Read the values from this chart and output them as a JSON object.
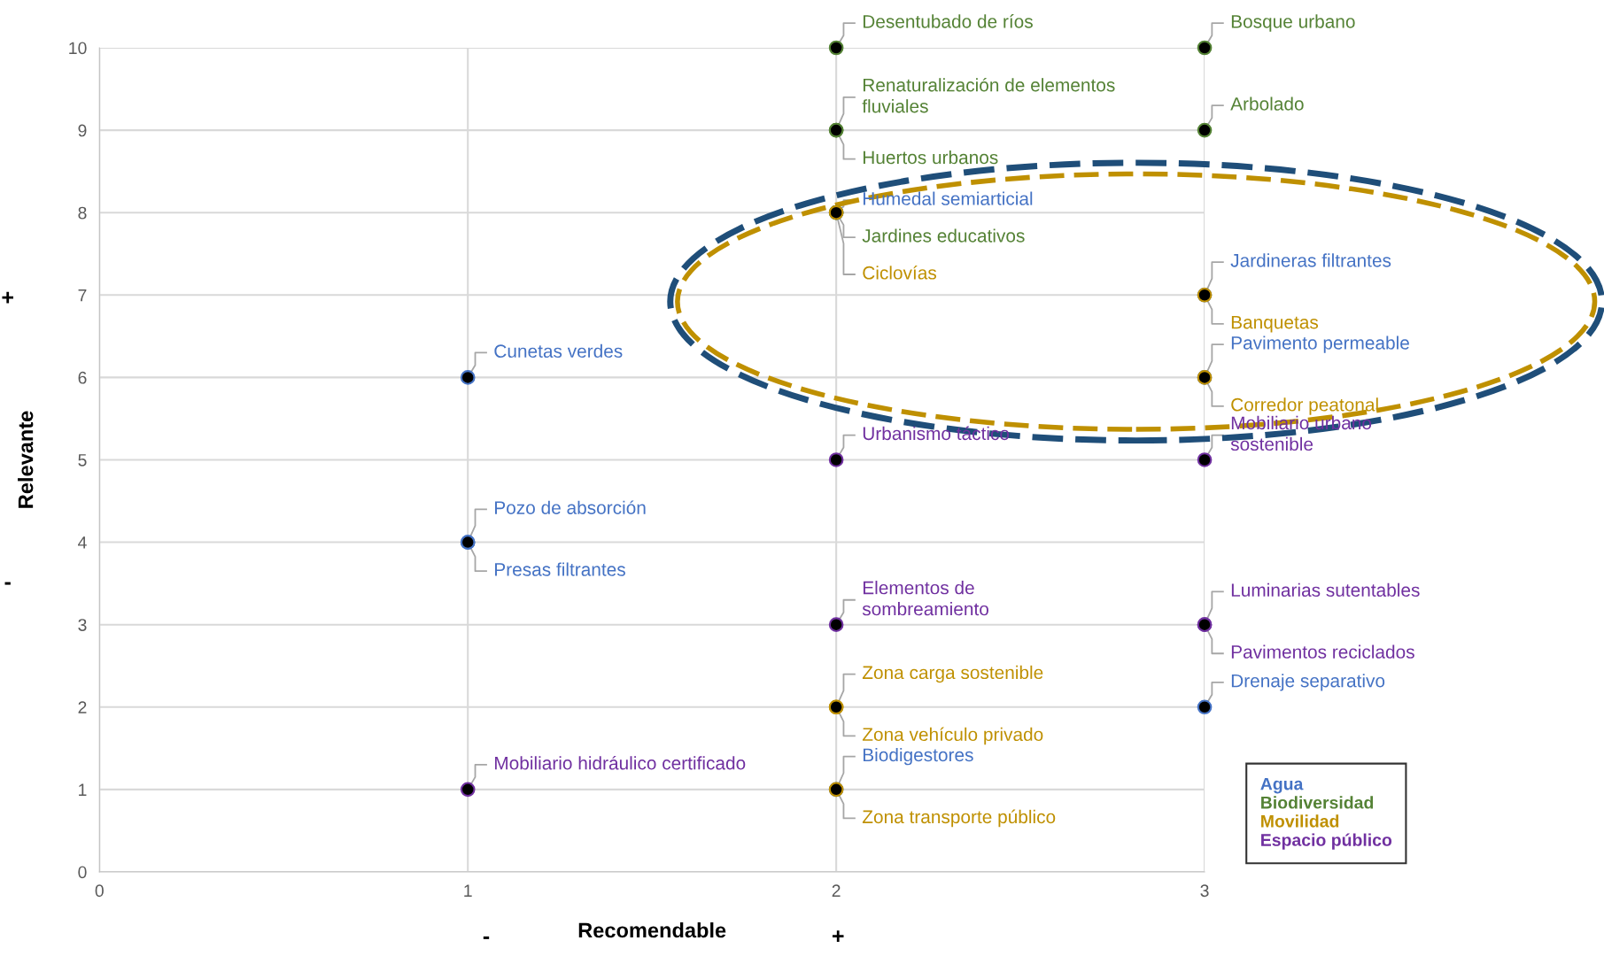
{
  "chart_data": {
    "type": "scatter",
    "xlabel": "Recomendable",
    "ylabel": "Relevante",
    "xlim": [
      0,
      3
    ],
    "ylim": [
      0,
      10
    ],
    "xticks": [
      0,
      1,
      2,
      3
    ],
    "yticks": [
      0,
      1,
      2,
      3,
      4,
      5,
      6,
      7,
      8,
      9,
      10
    ],
    "grid": true,
    "legend": "bottom right",
    "marker": "circle",
    "annotations": [
      "-",
      "+",
      "-",
      "+"
    ],
    "series": [
      {
        "name": "Agua",
        "color": "#4472c4",
        "colors": [
          "#000000",
          "#000000",
          "#000000",
          "#000000",
          "#000000",
          "#000000",
          "#000000",
          "#000000"
        ],
        "x": [
          2,
          3,
          1,
          3,
          1,
          1,
          3,
          2
        ],
        "values": [
          8,
          7,
          6,
          6,
          4,
          4,
          2,
          1
        ],
        "value_labels": [
          "Humedal semiarticial",
          "Jardineras filtrantes",
          "Cunetas verdes",
          "Pavimento permeable",
          "Pozo de absorción",
          "Presas filtrantes",
          "Drenaje separativo",
          "Biodigestores"
        ]
      },
      {
        "name": "Biodiversidad",
        "color": "#548235",
        "colors": [
          "#000000",
          "#000000",
          "#000000",
          "#000000",
          "#000000",
          "#000000"
        ],
        "x": [
          2,
          3,
          2,
          2,
          3,
          2
        ],
        "values": [
          10,
          10,
          9,
          9,
          9,
          8
        ],
        "value_labels": [
          "Desentubado de ríos",
          "Bosque urbano",
          "Renaturalización de elementos\nfluviales",
          "Huertos urbanos",
          "Arbolado",
          "Jardines educativos"
        ]
      },
      {
        "name": "Movilidad",
        "color": "#bf9000",
        "colors": [
          "#000000",
          "#000000",
          "#000000",
          "#000000",
          "#000000",
          "#000000"
        ],
        "x": [
          2,
          3,
          3,
          2,
          2,
          2
        ],
        "values": [
          8,
          7,
          6,
          2,
          2,
          1
        ],
        "value_labels": [
          "Ciclovías",
          "Banquetas",
          "Corredor peatonal",
          "Zona carga sostenible",
          "Zona vehículo privado",
          "Zona transporte público"
        ]
      },
      {
        "name": "Espacio público",
        "color": "#7030a0",
        "colors": [
          "#000000",
          "#000000",
          "#000000",
          "#000000",
          "#000000",
          "#000000"
        ],
        "x": [
          2,
          3,
          2,
          3,
          3,
          1
        ],
        "values": [
          5,
          5,
          3,
          3,
          3,
          1
        ],
        "value_labels": [
          "Urbanismo táctico",
          "Mobiliario urbano\nsostenible",
          "Elementos de\nsombreamiento",
          "Luminarias sutentables",
          "Pavimentos reciclados",
          "Mobiliario hidráulico certificado"
        ]
      }
    ]
  }
}
